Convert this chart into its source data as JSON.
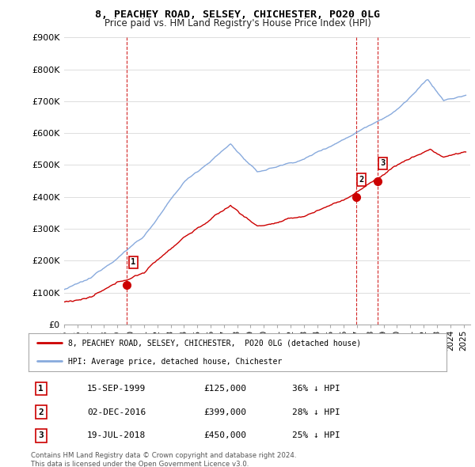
{
  "title": "8, PEACHEY ROAD, SELSEY, CHICHESTER, PO20 0LG",
  "subtitle": "Price paid vs. HM Land Registry's House Price Index (HPI)",
  "ylim": [
    0,
    900000
  ],
  "yticks": [
    0,
    100000,
    200000,
    300000,
    400000,
    500000,
    600000,
    700000,
    800000,
    900000
  ],
  "ytick_labels": [
    "£0",
    "£100K",
    "£200K",
    "£300K",
    "£400K",
    "£500K",
    "£600K",
    "£700K",
    "£800K",
    "£900K"
  ],
  "sale_prices": [
    125000,
    399000,
    450000
  ],
  "sale_labels": [
    "1",
    "2",
    "3"
  ],
  "sale_info": [
    {
      "label": "1",
      "date": "15-SEP-1999",
      "price": "£125,000",
      "pct": "36% ↓ HPI"
    },
    {
      "label": "2",
      "date": "02-DEC-2016",
      "price": "£399,000",
      "pct": "28% ↓ HPI"
    },
    {
      "label": "3",
      "date": "19-JUL-2018",
      "price": "£450,000",
      "pct": "25% ↓ HPI"
    }
  ],
  "legend_line1": "8, PEACHEY ROAD, SELSEY, CHICHESTER,  PO20 0LG (detached house)",
  "legend_line2": "HPI: Average price, detached house, Chichester",
  "footer": "Contains HM Land Registry data © Crown copyright and database right 2024.\nThis data is licensed under the Open Government Licence v3.0.",
  "sale_line_color": "#cc0000",
  "hpi_line_color": "#88aadd",
  "vline_color": "#cc0000",
  "background_color": "#ffffff",
  "grid_color": "#dddddd",
  "sale_year_decimals": [
    1999.708,
    2016.917,
    2018.542
  ]
}
